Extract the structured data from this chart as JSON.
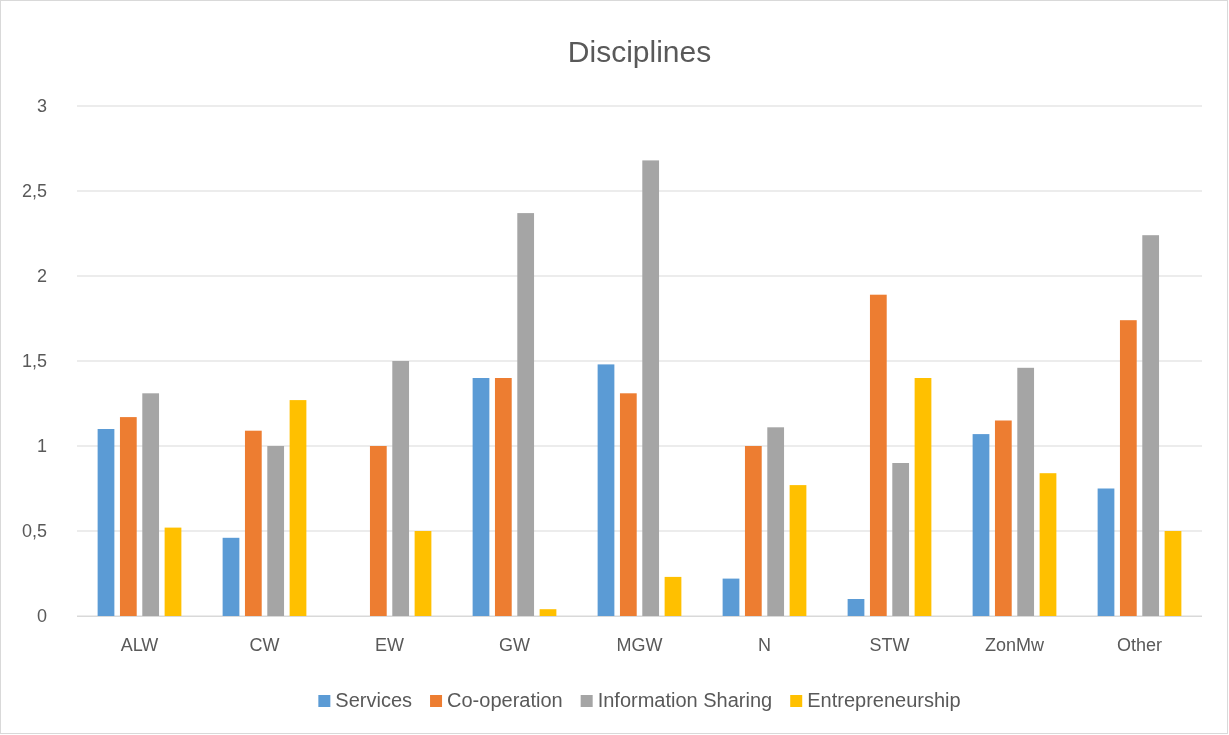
{
  "chart_data": {
    "type": "bar",
    "title": "Disciplines",
    "categories": [
      "ALW",
      "CW",
      "EW",
      "GW",
      "MGW",
      "N",
      "STW",
      "ZonMw",
      "Other"
    ],
    "series": [
      {
        "name": "Services",
        "color": "#5b9bd5",
        "values": [
          1.1,
          0.46,
          null,
          1.4,
          1.48,
          0.22,
          0.1,
          1.07,
          0.75
        ]
      },
      {
        "name": "Co-operation",
        "color": "#ed7d31",
        "values": [
          1.17,
          1.09,
          1.0,
          1.4,
          1.31,
          1.0,
          1.89,
          1.15,
          1.74
        ]
      },
      {
        "name": "Information Sharing",
        "color": "#a5a5a5",
        "values": [
          1.31,
          1.0,
          1.5,
          2.37,
          2.68,
          1.11,
          0.9,
          1.46,
          2.24
        ]
      },
      {
        "name": "Entrepreneurship",
        "color": "#ffc000",
        "values": [
          0.52,
          1.27,
          0.5,
          0.04,
          0.23,
          0.77,
          1.4,
          0.84,
          0.5
        ]
      }
    ],
    "ylim": [
      0,
      3
    ],
    "yticks": [
      0,
      {
        "value": 0.5,
        "label": "0,5"
      },
      1,
      {
        "value": 1.5,
        "label": "1,5"
      },
      2,
      {
        "value": 2.5,
        "label": "2,5"
      },
      3
    ],
    "grid": "y",
    "legend": "bottom"
  }
}
